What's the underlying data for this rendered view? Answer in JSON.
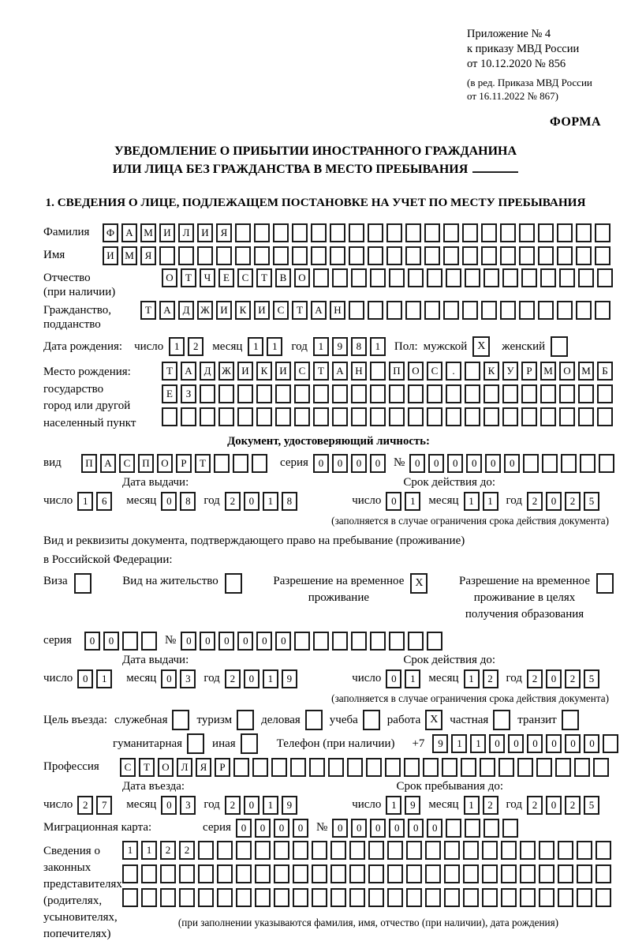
{
  "header": {
    "appendix": [
      "Приложение № 4",
      "к приказу МВД России",
      "от 10.12.2020 № 856"
    ],
    "amendment": [
      "(в ред. Приказа МВД России",
      "от 16.11.2022 № 867)"
    ],
    "forma": "ФОРМА",
    "title1": "УВЕДОМЛЕНИЕ О ПРИБЫТИИ ИНОСТРАННОГО ГРАЖДАНИНА",
    "title2": "ИЛИ ЛИЦА БЕЗ ГРАЖДАНСТВА В МЕСТО ПРЕБЫВАНИЯ",
    "section1": "1. СВЕДЕНИЯ О ЛИЦЕ, ПОДЛЕЖАЩЕМ ПОСТАНОВКЕ НА УЧЕТ ПО МЕСТУ ПРЕБЫВАНИЯ"
  },
  "person": {
    "surname": {
      "label": "Фамилия",
      "t": "ФАМИЛИЯ",
      "n": 27
    },
    "name": {
      "label": "Имя",
      "t": "ИМЯ",
      "n": 27
    },
    "patronymic": {
      "label": "Отчество\n(при наличии)",
      "t": "ОТЧЕСТВО",
      "n": 24
    },
    "citizenship": {
      "label": "Гражданство,\nподданство",
      "t": "ТАДЖИКИСТАН",
      "n": 25
    },
    "birth_date": {
      "label": "Дата рождения:",
      "day_label": "число",
      "day": {
        "t": "12",
        "n": 2
      },
      "month_label": "месяц",
      "month": {
        "t": "11",
        "n": 2
      },
      "year_label": "год",
      "year": {
        "t": "1981",
        "n": 4
      }
    },
    "sex": {
      "label": "Пол:",
      "male": "мужской",
      "male_mark": "X",
      "female": "женский",
      "female_mark": ""
    },
    "birth_place": {
      "label": "Место рождения:\nгосударство\nгород или другой\nнаселенный пункт",
      "row1": {
        "t": "ТАДЖИКИСТАН ПОС. КУРМОМБ",
        "n": 24
      },
      "row2": {
        "t": "ЕЗ",
        "n": 24
      },
      "row3": {
        "t": "",
        "n": 24
      }
    }
  },
  "identity_doc": {
    "heading": "Документ, удостоверяющий личность:",
    "kind_label": "вид",
    "kind": {
      "t": "ПАСПОРТ",
      "n": 10
    },
    "series_label": "серия",
    "series": {
      "t": "0000",
      "n": 4
    },
    "number_label": "№",
    "number": {
      "t": "000000",
      "n": 11
    },
    "issue_heading": "Дата выдачи:",
    "expiry_heading": "Срок действия до:",
    "issue": {
      "day_label": "число",
      "day": {
        "t": "16",
        "n": 2
      },
      "month_label": "месяц",
      "month": {
        "t": "08",
        "n": 2
      },
      "year_label": "год",
      "year": {
        "t": "2018",
        "n": 4
      }
    },
    "expiry": {
      "day_label": "число",
      "day": {
        "t": "01",
        "n": 2
      },
      "month_label": "месяц",
      "month": {
        "t": "11",
        "n": 2
      },
      "year_label": "год",
      "year": {
        "t": "2025",
        "n": 4
      }
    },
    "note": "(заполняется в случае ограничения срока действия документа)"
  },
  "residence_doc": {
    "line1": "Вид и реквизиты документа, подтверждающего право на пребывание (проживание)",
    "line2": "в Российской Федерации:",
    "options": [
      {
        "label": "Виза",
        "mark": ""
      },
      {
        "label": "Вид на жительство",
        "mark": ""
      },
      {
        "label": "Разрешение на временное\nпроживание",
        "mark": "X"
      },
      {
        "label": "Разрешение на временное\nпроживание в целях\nполучения образования",
        "mark": ""
      }
    ],
    "series_label": "серия",
    "series": {
      "t": "00",
      "n": 4
    },
    "number_label": "№",
    "number": {
      "t": "000000",
      "n": 14
    },
    "issue_heading": "Дата выдачи:",
    "expiry_heading": "Срок действия до:",
    "issue": {
      "day_label": "число",
      "day": {
        "t": "01",
        "n": 2
      },
      "month_label": "месяц",
      "month": {
        "t": "03",
        "n": 2
      },
      "year_label": "год",
      "year": {
        "t": "2019",
        "n": 4
      }
    },
    "expiry": {
      "day_label": "число",
      "day": {
        "t": "01",
        "n": 2
      },
      "month_label": "месяц",
      "month": {
        "t": "12",
        "n": 2
      },
      "year_label": "год",
      "year": {
        "t": "2025",
        "n": 4
      }
    },
    "note": "(заполняется в случае ограничения срока действия документа)"
  },
  "visit": {
    "purpose_label": "Цель въезда:",
    "purposes_row1": [
      {
        "label": "служебная",
        "mark": ""
      },
      {
        "label": "туризм",
        "mark": ""
      },
      {
        "label": "деловая",
        "mark": ""
      },
      {
        "label": "учеба",
        "mark": ""
      },
      {
        "label": "работа",
        "mark": "X"
      },
      {
        "label": "частная",
        "mark": ""
      },
      {
        "label": "транзит",
        "mark": ""
      }
    ],
    "purposes_row2": [
      {
        "label": "гуманитарная",
        "mark": ""
      },
      {
        "label": "иная",
        "mark": ""
      }
    ],
    "phone_label": "Телефон (при наличии)",
    "phone_prefix": "+7",
    "phone": {
      "t": "911000000",
      "n": 10
    },
    "profession_label": "Профессия",
    "profession": {
      "t": "СТОЛЯР",
      "n": 26
    },
    "entry_heading": "Дата въезда:",
    "stay_heading": "Срок пребывания до:",
    "entry": {
      "day_label": "число",
      "day": {
        "t": "27",
        "n": 2
      },
      "month_label": "месяц",
      "month": {
        "t": "03",
        "n": 2
      },
      "year_label": "год",
      "year": {
        "t": "2019",
        "n": 4
      }
    },
    "stay_until": {
      "day_label": "число",
      "day": {
        "t": "19",
        "n": 2
      },
      "month_label": "месяц",
      "month": {
        "t": "12",
        "n": 2
      },
      "year_label": "год",
      "year": {
        "t": "2025",
        "n": 4
      }
    },
    "migration_card_label": "Миграционная карта:",
    "mc_series_label": "серия",
    "mc_series": {
      "t": "0000",
      "n": 4
    },
    "mc_number_label": "№",
    "mc_number": {
      "t": "000000",
      "n": 10
    }
  },
  "representatives": {
    "label": "Сведения о\nзаконных\nпредставителях\n(родителях,\nусыновителях,\nпопечителях)",
    "row1": {
      "t": "1122",
      "n": 26
    },
    "row2": {
      "t": "",
      "n": 26
    },
    "row3": {
      "t": "",
      "n": 26
    },
    "note": "(при заполнении указываются фамилия, имя, отчество (при наличии), дата рождения)"
  }
}
